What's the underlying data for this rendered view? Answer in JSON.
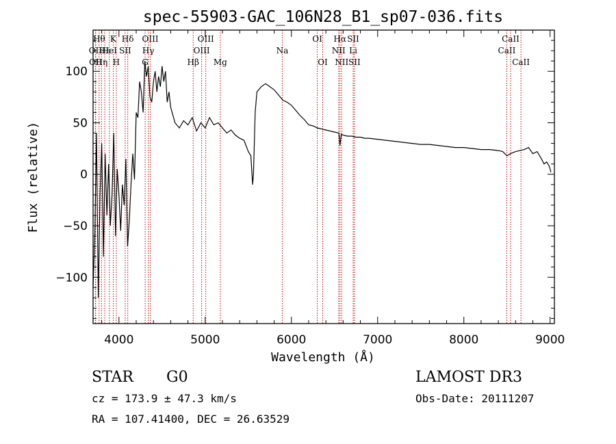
{
  "chart_data": {
    "type": "line",
    "title": "spec-55903-GAC_106N28_B1_sp07-036.fits",
    "xlabel": "Wavelength (Å)",
    "ylabel": "Flux (relative)",
    "xlim": [
      3700,
      9050
    ],
    "ylim": [
      -145,
      140
    ],
    "xticks": [
      4000,
      5000,
      6000,
      7000,
      8000,
      9000
    ],
    "yticks": [
      -100,
      -50,
      0,
      50,
      100
    ],
    "series": [
      {
        "x": [
          3700,
          3720,
          3740,
          3760,
          3780,
          3800,
          3820,
          3840,
          3860,
          3880,
          3900,
          3920,
          3940,
          3960,
          3980,
          4000,
          4020,
          4040,
          4060,
          4080,
          4100,
          4120,
          4140,
          4160,
          4180,
          4200,
          4220,
          4240,
          4260,
          4280,
          4300,
          4320,
          4340,
          4360,
          4380,
          4400,
          4420,
          4440,
          4460,
          4480,
          4500,
          4520,
          4540,
          4560,
          4580,
          4600,
          4650,
          4700,
          4750,
          4800,
          4850,
          4900,
          4950,
          5000,
          5050,
          5100,
          5150,
          5200,
          5250,
          5300,
          5350,
          5400,
          5450,
          5500,
          5530,
          5550,
          5560,
          5570,
          5580,
          5600,
          5650,
          5700,
          5750,
          5800,
          5850,
          5900,
          5950,
          6000,
          6050,
          6100,
          6150,
          6200,
          6250,
          6300,
          6350,
          6400,
          6450,
          6500,
          6550,
          6563,
          6580,
          6600,
          6650,
          6700,
          6750,
          6800,
          6850,
          6900,
          7000,
          7100,
          7200,
          7300,
          7400,
          7500,
          7600,
          7700,
          7800,
          7900,
          8000,
          8100,
          8200,
          8300,
          8400,
          8450,
          8500,
          8542,
          8600,
          8650,
          8700,
          8750,
          8800,
          8850,
          8900,
          8930,
          8960,
          8990,
          9010
        ],
        "y": [
          -110,
          -60,
          40,
          -120,
          -20,
          30,
          -80,
          20,
          -40,
          10,
          -50,
          -20,
          40,
          -60,
          5,
          -20,
          -55,
          -10,
          -30,
          15,
          -70,
          -45,
          -10,
          20,
          -5,
          60,
          55,
          90,
          80,
          60,
          110,
          95,
          105,
          75,
          70,
          90,
          100,
          80,
          95,
          85,
          105,
          90,
          100,
          70,
          80,
          65,
          50,
          45,
          52,
          48,
          55,
          42,
          50,
          45,
          55,
          48,
          50,
          45,
          40,
          43,
          38,
          35,
          33,
          22,
          18,
          -10,
          0,
          30,
          60,
          80,
          85,
          88,
          85,
          82,
          77,
          72,
          70,
          67,
          62,
          57,
          53,
          48,
          47,
          45,
          44,
          43,
          42,
          41,
          40,
          28,
          39,
          38,
          37,
          37,
          36,
          36,
          35,
          35,
          34,
          33,
          32,
          31,
          30,
          29,
          29,
          28,
          27,
          26,
          26,
          25,
          24,
          24,
          23,
          22,
          18,
          20,
          22,
          23,
          24,
          26,
          20,
          22,
          15,
          10,
          12,
          8,
          2
        ],
        "color": "#000000"
      }
    ],
    "lines": [
      {
        "wave": 3727,
        "label": "OII",
        "row": 2
      },
      {
        "wave": 3730,
        "label": "OII",
        "row": 3
      },
      {
        "wave": 3770,
        "label": "Hθ",
        "row": 1
      },
      {
        "wave": 3798,
        "label": "Hη",
        "row": 3
      },
      {
        "wave": 3835,
        "label": "Hε",
        "row": 2
      },
      {
        "wave": 3889,
        "label": "HeI",
        "row": 2
      },
      {
        "wave": 3934,
        "label": "K",
        "row": 1
      },
      {
        "wave": 3969,
        "label": "H",
        "row": 3
      },
      {
        "wave": 4072,
        "label": "SII",
        "row": 2
      },
      {
        "wave": 4102,
        "label": "Hδ",
        "row": 1
      },
      {
        "wave": 4304,
        "label": "G",
        "row": 3
      },
      {
        "wave": 4340,
        "label": "Hγ",
        "row": 2
      },
      {
        "wave": 4363,
        "label": "OIII",
        "row": 1
      },
      {
        "wave": 4861,
        "label": "Hβ",
        "row": 3
      },
      {
        "wave": 4959,
        "label": "OIII",
        "row": 2
      },
      {
        "wave": 5007,
        "label": "OIII",
        "row": 1
      },
      {
        "wave": 5175,
        "label": "Mg",
        "row": 3
      },
      {
        "wave": 5894,
        "label": "Na",
        "row": 2
      },
      {
        "wave": 6300,
        "label": "OI",
        "row": 1
      },
      {
        "wave": 6363,
        "label": "OI",
        "row": 3
      },
      {
        "wave": 6548,
        "label": "NII",
        "row": 2
      },
      {
        "wave": 6563,
        "label": "Hα",
        "row": 1
      },
      {
        "wave": 6583,
        "label": "NII",
        "row": 3
      },
      {
        "wave": 6716,
        "label": "SII",
        "row": 1
      },
      {
        "wave": 6717,
        "label": "Li",
        "row": 2
      },
      {
        "wave": 6731,
        "label": "SII",
        "row": 3
      },
      {
        "wave": 8498,
        "label": "CaII",
        "row": 2
      },
      {
        "wave": 8542,
        "label": "CaII",
        "row": 1
      },
      {
        "wave": 8662,
        "label": "CaII",
        "row": 3
      }
    ],
    "line_color": "#cc0000",
    "grid": false
  },
  "info": {
    "class": "STAR",
    "subclass": "G0",
    "survey": "LAMOST DR3",
    "cz": "cz = 173.9 ± 47.3 km/s",
    "obsdate": "Obs-Date: 20111207",
    "radec": "RA = 107.41400, DEC =  26.63529"
  }
}
